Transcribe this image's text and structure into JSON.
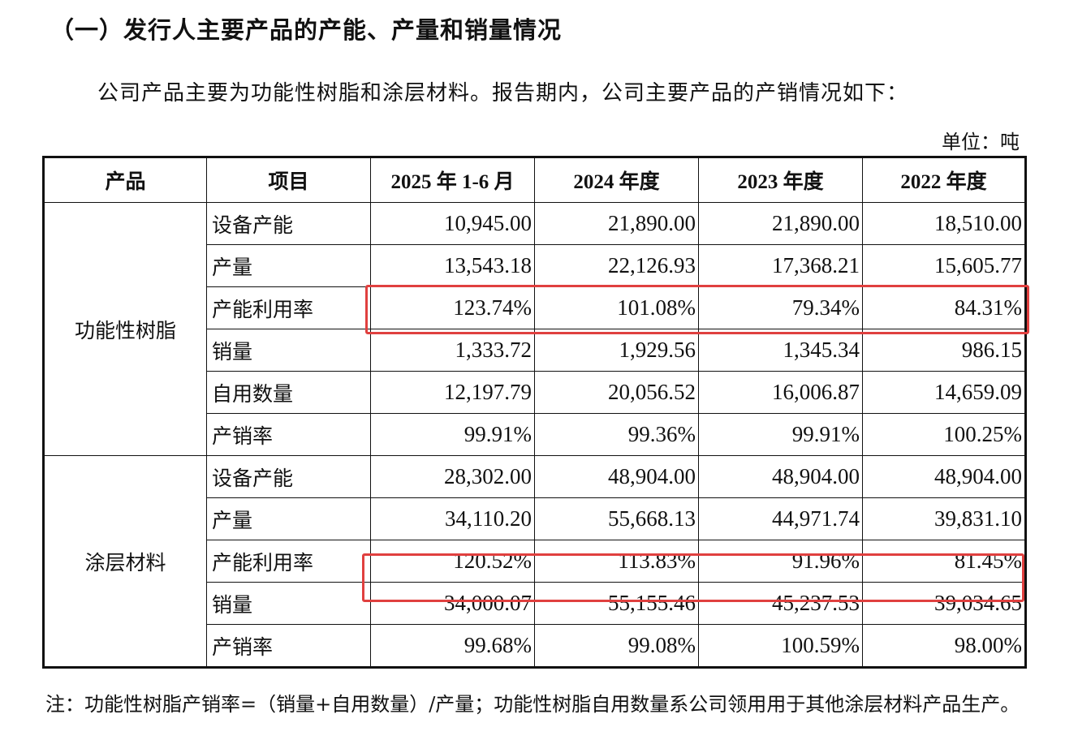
{
  "title": "（一）发行人主要产品的产能、产量和销量情况",
  "intro": "公司产品主要为功能性树脂和涂层材料。报告期内，公司主要产品的产销情况如下：",
  "unit": "单位：吨",
  "table": {
    "headers": [
      "产品",
      "项目",
      "2025 年 1-6 月",
      "2024 年度",
      "2023 年度",
      "2022 年度"
    ],
    "groups": [
      {
        "product": "功能性树脂",
        "rows": [
          {
            "item": "设备产能",
            "values": [
              "10,945.00",
              "21,890.00",
              "21,890.00",
              "18,510.00"
            ]
          },
          {
            "item": "产量",
            "values": [
              "13,543.18",
              "22,126.93",
              "17,368.21",
              "15,605.77"
            ]
          },
          {
            "item": "产能利用率",
            "values": [
              "123.74%",
              "101.08%",
              "79.34%",
              "84.31%"
            ],
            "highlight": true
          },
          {
            "item": "销量",
            "values": [
              "1,333.72",
              "1,929.56",
              "1,345.34",
              "986.15"
            ]
          },
          {
            "item": "自用数量",
            "values": [
              "12,197.79",
              "20,056.52",
              "16,006.87",
              "14,659.09"
            ]
          },
          {
            "item": "产销率",
            "values": [
              "99.91%",
              "99.36%",
              "99.91%",
              "100.25%"
            ]
          }
        ]
      },
      {
        "product": "涂层材料",
        "rows": [
          {
            "item": "设备产能",
            "values": [
              "28,302.00",
              "48,904.00",
              "48,904.00",
              "48,904.00"
            ]
          },
          {
            "item": "产量",
            "values": [
              "34,110.20",
              "55,668.13",
              "44,971.74",
              "39,831.10"
            ]
          },
          {
            "item": "产能利用率",
            "values": [
              "120.52%",
              "113.83%",
              "91.96%",
              "81.45%"
            ],
            "highlight": true
          },
          {
            "item": "销量",
            "values": [
              "34,000.07",
              "55,155.46",
              "45,237.53",
              "39,034.65"
            ]
          },
          {
            "item": "产销率",
            "values": [
              "99.68%",
              "99.08%",
              "100.59%",
              "98.00%"
            ]
          }
        ]
      }
    ]
  },
  "highlight_color": "#e0403f",
  "note": "注：功能性树脂产销率=（销量+自用数量）/产量；功能性树脂自用数量系公司领用用于其他涂层材料产品生产。"
}
